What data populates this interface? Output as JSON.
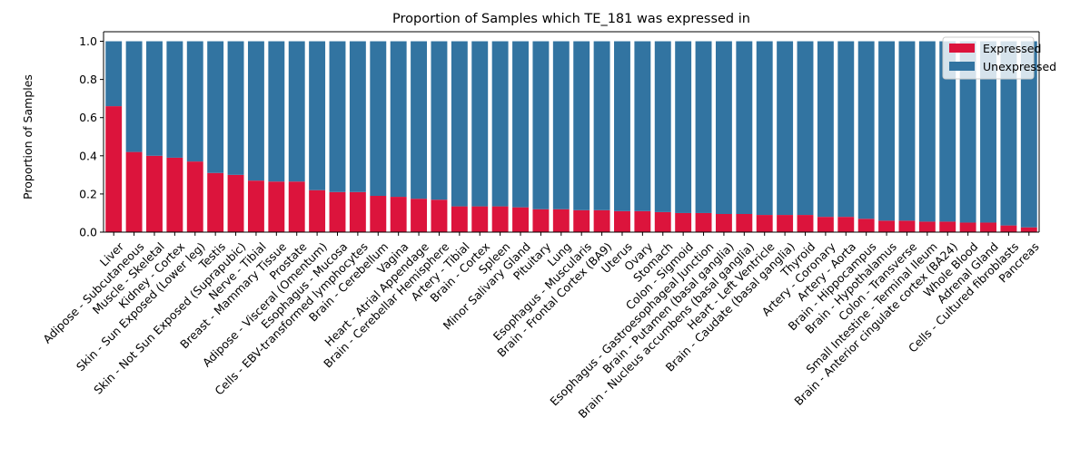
{
  "chart_data": {
    "type": "bar",
    "stacked": true,
    "title": "Proportion of Samples which TE_181 was expressed in",
    "xlabel": "",
    "ylabel": "Proportion of Samples",
    "ylim": [
      0,
      1.05
    ],
    "yticks": [
      "0.0",
      "0.2",
      "0.4",
      "0.6",
      "0.8",
      "1.0"
    ],
    "grid": false,
    "legend_position": "top-right",
    "categories": [
      "Liver",
      "Adipose - Subcutaneous",
      "Muscle - Skeletal",
      "Kidney - Cortex",
      "Skin - Sun Exposed (Lower leg)",
      "Testis",
      "Skin - Not Sun Exposed (Suprapubic)",
      "Nerve - Tibial",
      "Breast - Mammary Tissue",
      "Prostate",
      "Adipose - Visceral (Omentum)",
      "Esophagus - Mucosa",
      "Cells - EBV-transformed lymphocytes",
      "Brain - Cerebellum",
      "Vagina",
      "Heart - Atrial Appendage",
      "Brain - Cerebellar Hemisphere",
      "Artery - Tibial",
      "Brain - Cortex",
      "Spleen",
      "Minor Salivary Gland",
      "Pituitary",
      "Lung",
      "Esophagus - Muscularis",
      "Brain - Frontal Cortex (BA9)",
      "Uterus",
      "Ovary",
      "Stomach",
      "Colon - Sigmoid",
      "Esophagus - Gastroesophageal Junction",
      "Brain - Putamen (basal ganglia)",
      "Brain - Nucleus accumbens (basal ganglia)",
      "Heart - Left Ventricle",
      "Brain - Caudate (basal ganglia)",
      "Thyroid",
      "Artery - Coronary",
      "Artery - Aorta",
      "Brain - Hippocampus",
      "Brain - Hypothalamus",
      "Colon - Transverse",
      "Small Intestine - Terminal Ileum",
      "Brain - Anterior cingulate cortex (BA24)",
      "Whole Blood",
      "Adrenal Gland",
      "Cells - Cultured fibroblasts",
      "Pancreas"
    ],
    "series": [
      {
        "name": "Expressed",
        "color": "#dc143c",
        "values": [
          0.66,
          0.42,
          0.4,
          0.39,
          0.37,
          0.31,
          0.3,
          0.27,
          0.265,
          0.265,
          0.22,
          0.21,
          0.21,
          0.19,
          0.185,
          0.175,
          0.17,
          0.135,
          0.135,
          0.135,
          0.13,
          0.12,
          0.12,
          0.115,
          0.115,
          0.11,
          0.11,
          0.105,
          0.1,
          0.1,
          0.095,
          0.095,
          0.09,
          0.09,
          0.09,
          0.08,
          0.08,
          0.07,
          0.06,
          0.06,
          0.055,
          0.055,
          0.05,
          0.05,
          0.035,
          0.025
        ]
      },
      {
        "name": "Unexpressed",
        "color": "#3274a1",
        "values": [
          0.34,
          0.58,
          0.6,
          0.61,
          0.63,
          0.69,
          0.7,
          0.73,
          0.735,
          0.735,
          0.78,
          0.79,
          0.79,
          0.81,
          0.815,
          0.825,
          0.83,
          0.865,
          0.865,
          0.865,
          0.87,
          0.88,
          0.88,
          0.885,
          0.885,
          0.89,
          0.89,
          0.895,
          0.9,
          0.9,
          0.905,
          0.905,
          0.91,
          0.91,
          0.91,
          0.92,
          0.92,
          0.93,
          0.94,
          0.94,
          0.945,
          0.945,
          0.95,
          0.95,
          0.965,
          0.975
        ]
      }
    ]
  }
}
